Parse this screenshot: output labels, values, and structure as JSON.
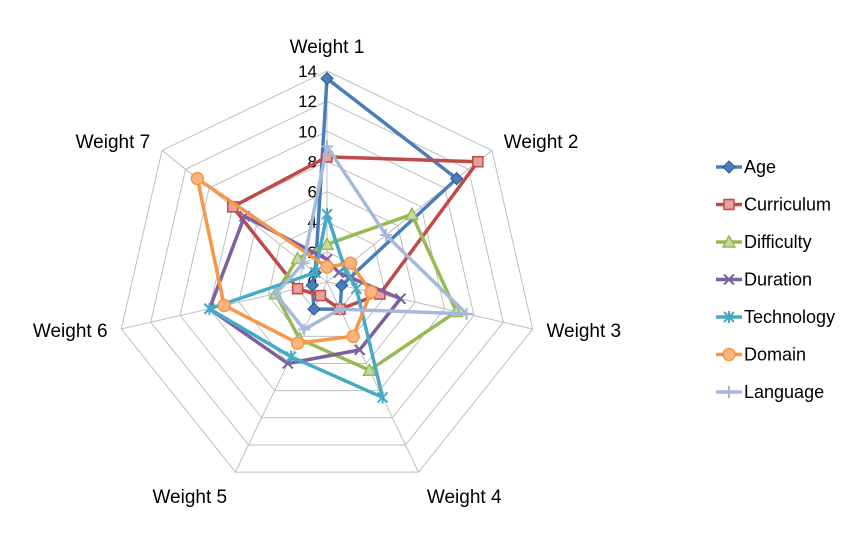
{
  "chart_data": {
    "type": "radar",
    "axes": [
      "Weight 1",
      "Weight 2",
      "Weight 3",
      "Weight 4",
      "Weight 5",
      "Weight 6",
      "Weight 7"
    ],
    "rlim": [
      0,
      14
    ],
    "r_ticks": [
      "0",
      "2",
      "4",
      "6",
      "8",
      "10",
      "12",
      "14"
    ],
    "grid": true,
    "legend_position": "right",
    "series": [
      {
        "name": "Age",
        "color": "#4a7ebb",
        "marker": "diamond",
        "values": [
          13.5,
          11,
          1,
          2,
          2,
          1,
          1
        ]
      },
      {
        "name": "Curriculum",
        "color": "#be4b48",
        "marker": "square",
        "values": [
          8.3,
          12.8,
          3.6,
          2,
          1,
          2,
          8
        ]
      },
      {
        "name": "Difficulty",
        "color": "#98b954",
        "marker": "triangle",
        "values": [
          2.5,
          7.2,
          8.8,
          6.5,
          4.2,
          3.5,
          2.5
        ]
      },
      {
        "name": "Duration",
        "color": "#7d60a0",
        "marker": "x",
        "values": [
          1.5,
          1,
          5,
          5,
          6,
          8,
          7
        ]
      },
      {
        "name": "Technology",
        "color": "#46aac5",
        "marker": "star",
        "values": [
          4.5,
          1.5,
          2,
          8.5,
          5.5,
          8,
          1
        ]
      },
      {
        "name": "Domain",
        "color": "#f79646",
        "marker": "circle",
        "values": [
          1,
          2,
          3,
          4,
          4.5,
          7,
          11
        ]
      },
      {
        "name": "Language",
        "color": "#a5b9d9",
        "marker": "plus",
        "values": [
          9,
          5,
          9.5,
          2,
          3.5,
          3.5,
          2
        ]
      }
    ]
  }
}
